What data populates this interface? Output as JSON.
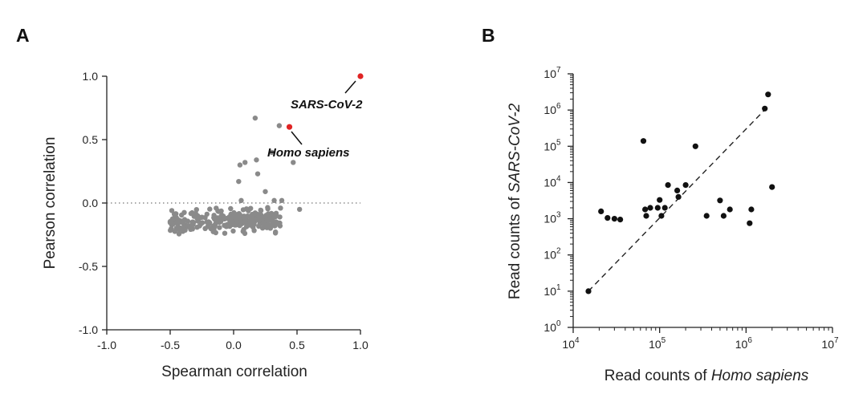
{
  "colors": {
    "grey_point": "#8a8a8a",
    "highlight": "#e02424",
    "black_point": "#111111",
    "axis": "#222222"
  },
  "chart_data": [
    {
      "panel": "A",
      "type": "scatter",
      "xlabel": "Spearman correlation",
      "ylabel": "Pearson correlation",
      "xlim": [
        -1.0,
        1.0
      ],
      "ylim": [
        -1.0,
        1.0
      ],
      "xticks": [
        -1.0,
        -0.5,
        0.0,
        0.5,
        1.0
      ],
      "xtick_labels": [
        "-1.0",
        "-0.5",
        "0.0",
        "0.5",
        "1.0"
      ],
      "yticks": [
        -1.0,
        -0.5,
        0.0,
        0.5,
        1.0
      ],
      "ytick_labels": [
        "-1.0",
        "-0.5",
        "0.0",
        "0.5",
        "1.0"
      ],
      "reference_line_y": 0.0,
      "highlighted": [
        {
          "label": "SARS-CoV-2",
          "x": 1.0,
          "y": 1.0
        },
        {
          "label": "Homo sapiens",
          "x": 0.44,
          "y": 0.6
        }
      ],
      "outliers": [
        [
          0.17,
          0.67
        ],
        [
          0.36,
          0.61
        ],
        [
          0.3,
          0.4
        ],
        [
          0.47,
          0.32
        ],
        [
          0.18,
          0.34
        ],
        [
          0.05,
          0.3
        ],
        [
          0.09,
          0.32
        ],
        [
          0.19,
          0.23
        ],
        [
          0.04,
          0.17
        ],
        [
          0.25,
          0.09
        ],
        [
          0.32,
          0.02
        ],
        [
          0.38,
          0.02
        ],
        [
          0.52,
          -0.05
        ],
        [
          0.37,
          -0.04
        ],
        [
          0.06,
          0.02
        ]
      ],
      "cloud": {
        "n": 260,
        "x_range": [
          -0.5,
          0.37
        ],
        "y_range": [
          -0.29,
          -0.03
        ],
        "center_y": -0.14
      }
    },
    {
      "panel": "B",
      "type": "scatter",
      "xscale": "log",
      "yscale": "log",
      "xlabel_prefix": "Read counts of ",
      "xlabel_italic": "Homo sapiens",
      "ylabel_prefix": "Read counts of ",
      "ylabel_italic": "SARS-CoV-2",
      "xlim_log10": [
        4,
        7
      ],
      "ylim_log10": [
        0,
        7
      ],
      "xtick_exponents": [
        "4",
        "5",
        "6",
        "7"
      ],
      "ytick_exponents": [
        "0",
        "1",
        "2",
        "3",
        "4",
        "5",
        "6",
        "7"
      ],
      "tick_base": "10",
      "diagonal": {
        "from": [
          15000,
          10
        ],
        "to": [
          1700000,
          1100000
        ]
      },
      "points": [
        [
          15000,
          10
        ],
        [
          21000,
          1600
        ],
        [
          25000,
          1050
        ],
        [
          30000,
          1000
        ],
        [
          35000,
          950
        ],
        [
          65000,
          140000
        ],
        [
          68000,
          1800
        ],
        [
          70000,
          1200
        ],
        [
          78000,
          2000
        ],
        [
          95000,
          2000
        ],
        [
          100000,
          3300
        ],
        [
          105000,
          1200
        ],
        [
          115000,
          2000
        ],
        [
          125000,
          8500
        ],
        [
          160000,
          6000
        ],
        [
          165000,
          4000
        ],
        [
          200000,
          8500
        ],
        [
          260000,
          100000
        ],
        [
          350000,
          1200
        ],
        [
          500000,
          3200
        ],
        [
          550000,
          1200
        ],
        [
          650000,
          1800
        ],
        [
          1100000,
          750
        ],
        [
          1150000,
          1800
        ],
        [
          1650000,
          1100000
        ],
        [
          1800000,
          2700000
        ],
        [
          2000000,
          7500
        ]
      ]
    }
  ]
}
